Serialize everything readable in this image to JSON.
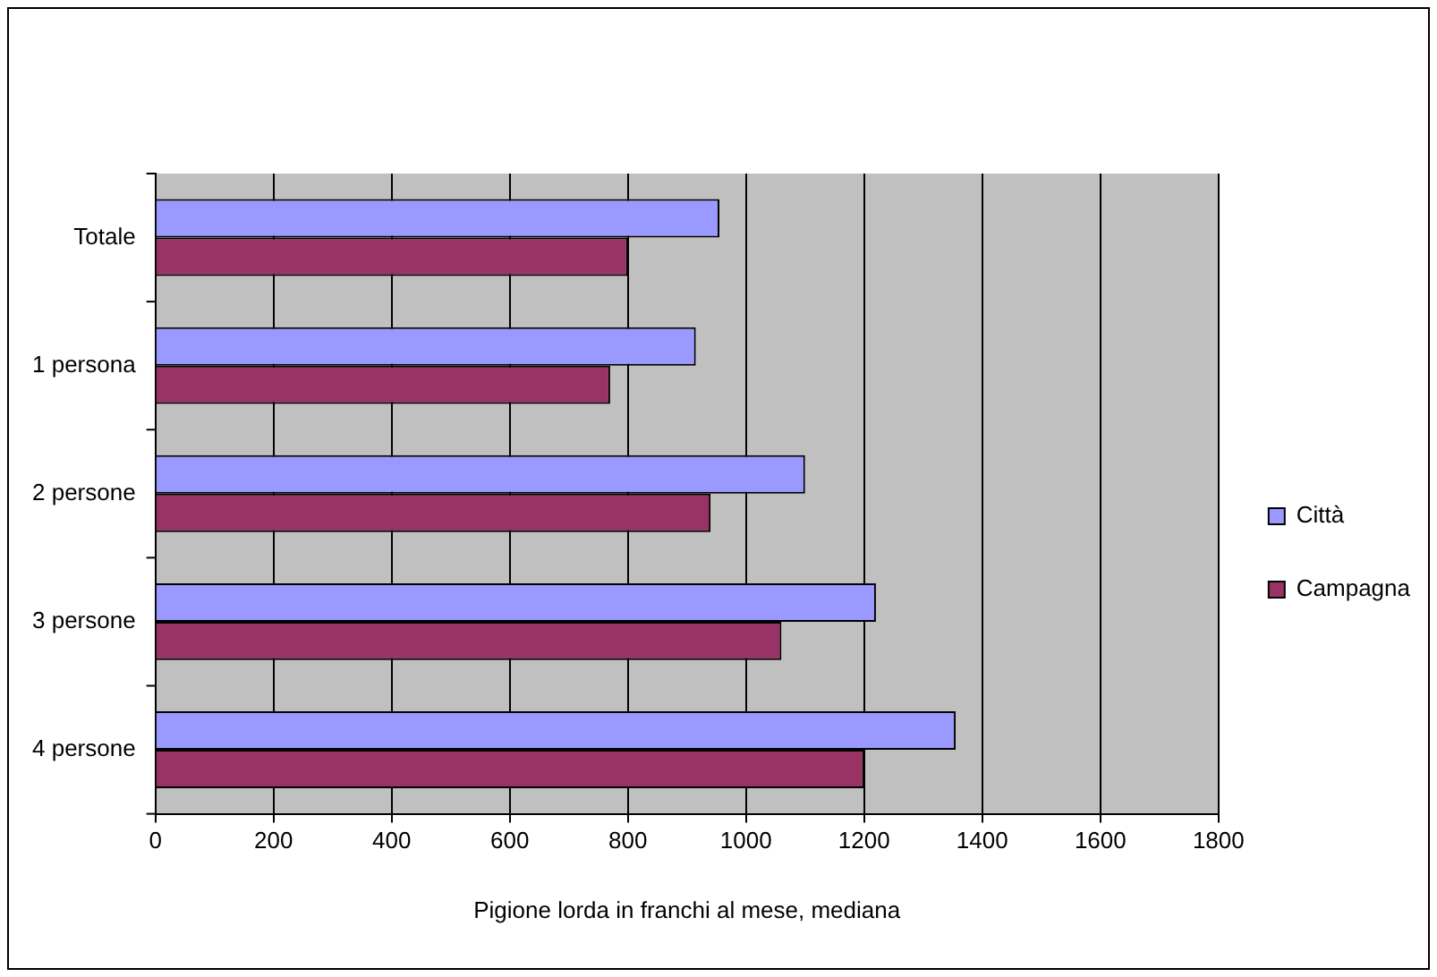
{
  "chart_data": {
    "type": "bar",
    "orientation": "horizontal",
    "xlabel": "Pigione lorda in franchi al mese, mediana",
    "categories": [
      "Totale",
      "1 persona",
      "2 persone",
      "3 persone",
      "4 persone"
    ],
    "series": [
      {
        "name": "Città",
        "color": "#9999ff",
        "values": [
          955,
          915,
          1100,
          1220,
          1355
        ]
      },
      {
        "name": "Campagna",
        "color": "#993366",
        "values": [
          800,
          770,
          940,
          1060,
          1200
        ]
      }
    ],
    "xlim": [
      0,
      1800
    ],
    "xticks": [
      0,
      200,
      400,
      600,
      800,
      1000,
      1200,
      1400,
      1600,
      1800
    ],
    "grid": "x",
    "legend": "right"
  }
}
